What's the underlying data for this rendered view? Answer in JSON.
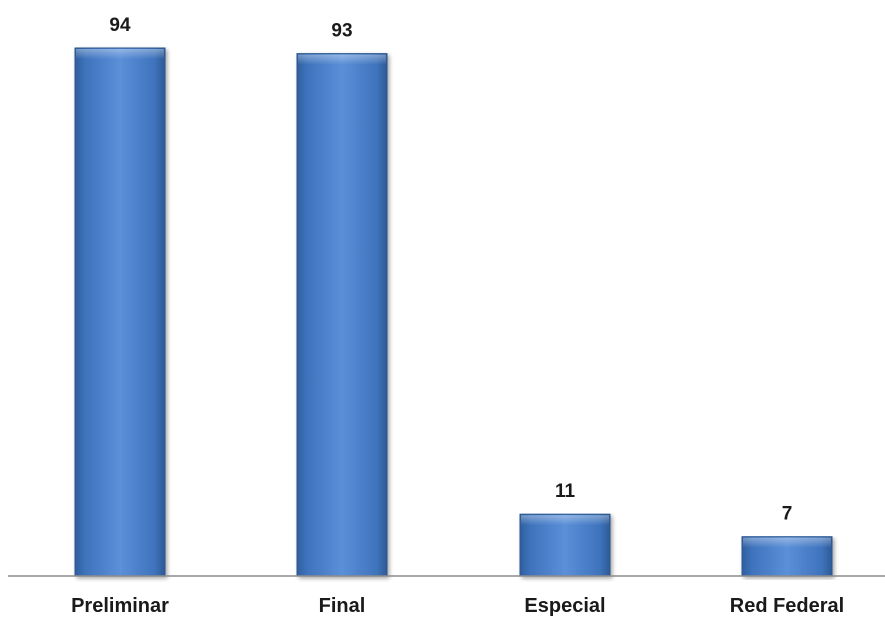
{
  "chart_data": {
    "type": "bar",
    "title": "",
    "xlabel": "",
    "ylabel": "",
    "categories": [
      "Preliminar",
      "Final",
      "Especial",
      "Red Federal"
    ],
    "values": [
      94,
      93,
      11,
      7
    ],
    "ylim": [
      0,
      100
    ],
    "grid": false,
    "legend": "none",
    "bar_color": "#3f74bd"
  }
}
